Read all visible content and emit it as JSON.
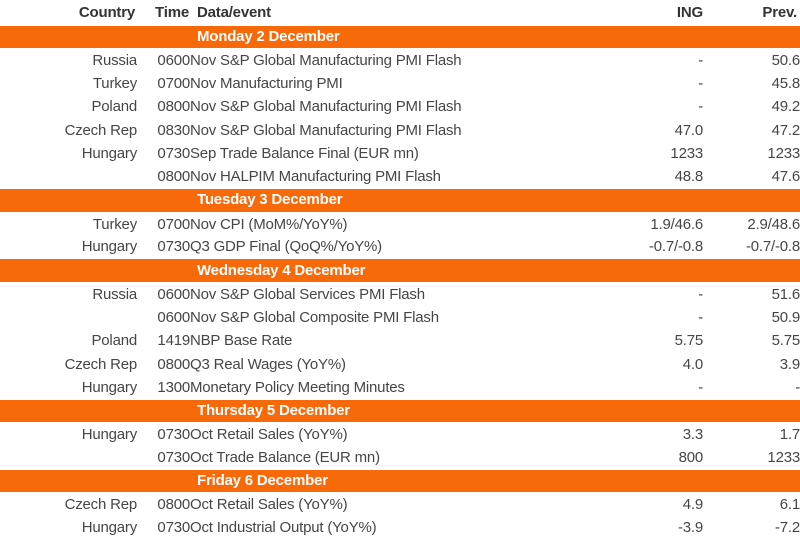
{
  "colors": {
    "accent_orange": "#F8690A",
    "header_text": "#333333",
    "body_text": "#464646",
    "section_title_text": "#FFFFFF"
  },
  "table": {
    "headers": {
      "country": "Country",
      "time": "Time",
      "event": "Data/event",
      "ing": "ING",
      "prev": "Prev."
    },
    "sections": [
      {
        "title": "Monday 2 December",
        "rows": [
          {
            "country": "Russia",
            "time": "0600",
            "event": "Nov S&P Global Manufacturing PMI Flash",
            "ing": "-",
            "prev": "50.6"
          },
          {
            "country": "Turkey",
            "time": "0700",
            "event": "Nov Manufacturing PMI",
            "ing": "-",
            "prev": "45.8"
          },
          {
            "country": "Poland",
            "time": "0800",
            "event": "Nov S&P Global Manufacturing PMI Flash",
            "ing": "-",
            "prev": "49.2"
          },
          {
            "country": "Czech Rep",
            "time": "0830",
            "event": "Nov S&P Global Manufacturing PMI Flash",
            "ing": "47.0",
            "prev": "47.2"
          },
          {
            "country": "Hungary",
            "time": "0730",
            "event": "Sep Trade Balance Final (EUR mn)",
            "ing": "1233",
            "prev": "1233"
          },
          {
            "country": "",
            "time": "0800",
            "event": "Nov HALPIM Manufacturing PMI Flash",
            "ing": "48.8",
            "prev": "47.6"
          }
        ]
      },
      {
        "title": "Tuesday 3 December",
        "rows": [
          {
            "country": "Turkey",
            "time": "0700",
            "event": "Nov CPI (MoM%/YoY%)",
            "ing": "1.9/46.6",
            "prev": "2.9/48.6"
          },
          {
            "country": "Hungary",
            "time": "0730",
            "event": "Q3 GDP Final (QoQ%/YoY%)",
            "ing": "-0.7/-0.8",
            "prev": "-0.7/-0.8"
          }
        ]
      },
      {
        "title": "Wednesday 4 December",
        "rows": [
          {
            "country": "Russia",
            "time": "0600",
            "event": "Nov S&P Global Services PMI Flash",
            "ing": "-",
            "prev": "51.6"
          },
          {
            "country": "",
            "time": "0600",
            "event": "Nov S&P Global Composite PMI Flash",
            "ing": "-",
            "prev": "50.9"
          },
          {
            "country": "Poland",
            "time": "1419",
            "event": "NBP Base Rate",
            "ing": "5.75",
            "prev": "5.75"
          },
          {
            "country": "Czech Rep",
            "time": "0800",
            "event": "Q3 Real Wages (YoY%)",
            "ing": "4.0",
            "prev": "3.9"
          },
          {
            "country": "Hungary",
            "time": "1300",
            "event": "Monetary Policy Meeting Minutes",
            "ing": "-",
            "prev": "-"
          }
        ]
      },
      {
        "title": "Thursday 5 December",
        "rows": [
          {
            "country": "Hungary",
            "time": "0730",
            "event": "Oct Retail Sales (YoY%)",
            "ing": "3.3",
            "prev": "1.7"
          },
          {
            "country": "",
            "time": "0730",
            "event": "Oct Trade Balance (EUR mn)",
            "ing": "800",
            "prev": "1233"
          }
        ]
      },
      {
        "title": "Friday 6 December",
        "rows": [
          {
            "country": "Czech Rep",
            "time": "0800",
            "event": "Oct Retail Sales (YoY%)",
            "ing": "4.9",
            "prev": "6.1"
          },
          {
            "country": "Hungary",
            "time": "0730",
            "event": "Oct Industrial Output (YoY%)",
            "ing": "-3.9",
            "prev": "-7.2"
          }
        ]
      }
    ]
  }
}
